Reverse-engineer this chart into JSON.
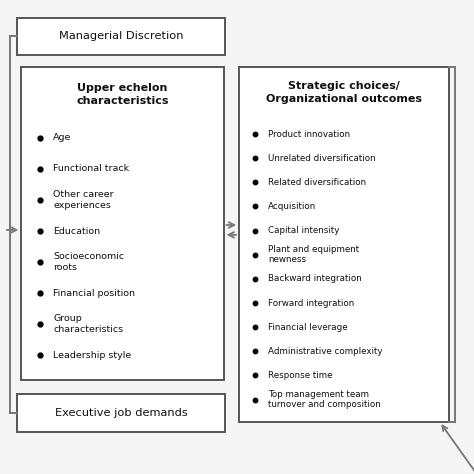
{
  "background_color": "#f5f5f5",
  "managerial_discretion_text": "Managerial Discretion",
  "executive_job_demands_text": "Executive job demands",
  "upper_echelon_title": "Upper echelon\ncharacteristics",
  "upper_echelon_items": [
    "Age",
    "Functional track",
    "Other career\nexperiences",
    "Education",
    "Socioeconomic\nroots",
    "Financial position",
    "Group\ncharacteristics",
    "Leadership style"
  ],
  "strategic_title": "Strategic choices/\nOrganizational outcomes",
  "strategic_items": [
    "Product innovation",
    "Unrelated diversification",
    "Related diversification",
    "Acquisition",
    "Capital intensity",
    "Plant and equipment\nnewness",
    "Backward integration",
    "Forward integration",
    "Financial leverage",
    "Administrative complexity",
    "Response time",
    "Top management team\nturnover and composition"
  ],
  "box_edge_color": "#555555",
  "arrow_color": "#777777",
  "text_color": "#111111",
  "font_size_heading": 8.0,
  "font_size_items": 6.8,
  "font_size_box_label": 8.2
}
